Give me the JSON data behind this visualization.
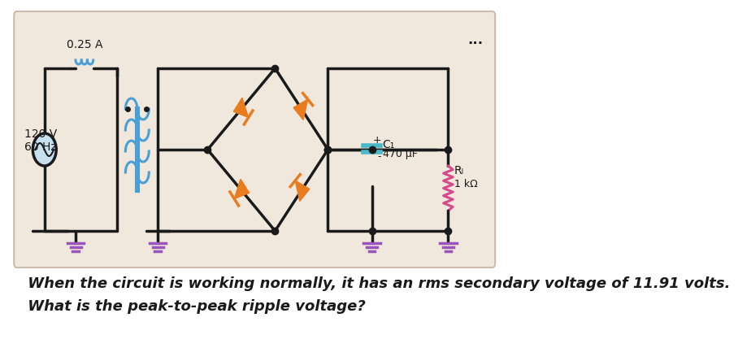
{
  "bg_color": "#f0e8dc",
  "outer_bg": "#ffffff",
  "line_color": "#1a1a1a",
  "lw": 2.5,
  "transformer_color_primary": "#4a9fd4",
  "transformer_color_secondary": "#4a9fd4",
  "diode_color": "#e87c1e",
  "capacitor_color": "#4ab8c8",
  "resistor_color": "#d44a8c",
  "fuse_color": "#4a9fd4",
  "ground_color": "#9955bb",
  "text_120v": "120 V\n60 Hz",
  "text_fuse": "0.25 A",
  "text_c1": "C₁",
  "text_c1_val": "470 μF",
  "text_rl": "Rₗ",
  "text_rl_val": "1 kΩ",
  "text_plus": "+",
  "text_minus": "-",
  "text_dots": "...",
  "question_line1": " When the circuit is working normally, it has an rms secondary voltage of 11.91 volts.",
  "question_line2": " What is the peak-to-peak ripple voltage?",
  "question_fontsize": 13,
  "question_style": "italic"
}
